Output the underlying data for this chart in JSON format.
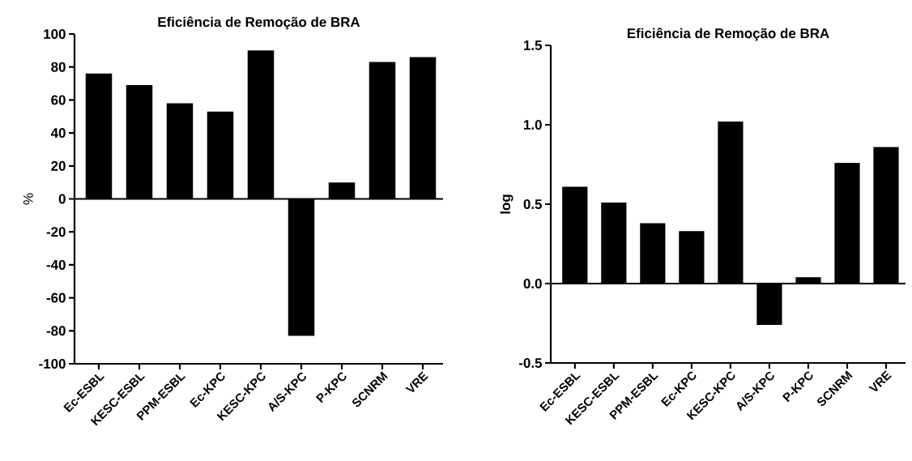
{
  "chart_data": [
    {
      "type": "bar",
      "title": "Eficiência de Remoção de BRA",
      "ylabel": "%",
      "categories": [
        "Ec-ESBL",
        "KESC-ESBL",
        "PPM-ESBL",
        "Ec-KPC",
        "KESC-KPC",
        "A/S-KPC",
        "P-KPC",
        "SCNRM",
        "VRE"
      ],
      "values": [
        76,
        69,
        58,
        53,
        90,
        -83,
        10,
        83,
        86
      ],
      "color": "#000000",
      "ylim": [
        -100,
        100
      ],
      "yticks": [
        -100,
        -80,
        -60,
        -40,
        -20,
        0,
        20,
        40,
        60,
        80,
        100
      ],
      "ref_lines": [
        {
          "axis": "y",
          "value": 0
        }
      ]
    },
    {
      "type": "bar",
      "title": "Eficiência de Remoção de BRA",
      "ylabel": "log",
      "categories": [
        "Ec-ESBL",
        "KESC-ESBL",
        "PPM-ESBL",
        "Ec-KPC",
        "KESC-KPC",
        "A/S-KPC",
        "P-KPC",
        "SCNRM",
        "VRE"
      ],
      "values": [
        0.61,
        0.51,
        0.38,
        0.33,
        1.02,
        -0.26,
        0.04,
        0.76,
        0.86
      ],
      "color": "#000000",
      "ylim": [
        -0.5,
        1.5
      ],
      "yticks": [
        -0.5,
        {
          "value": 0,
          "label": "0.0"
        },
        0.5,
        {
          "value": 1,
          "label": "1.0"
        },
        1.5
      ],
      "ref_lines": [
        {
          "axis": "y",
          "value": 0
        }
      ]
    }
  ]
}
